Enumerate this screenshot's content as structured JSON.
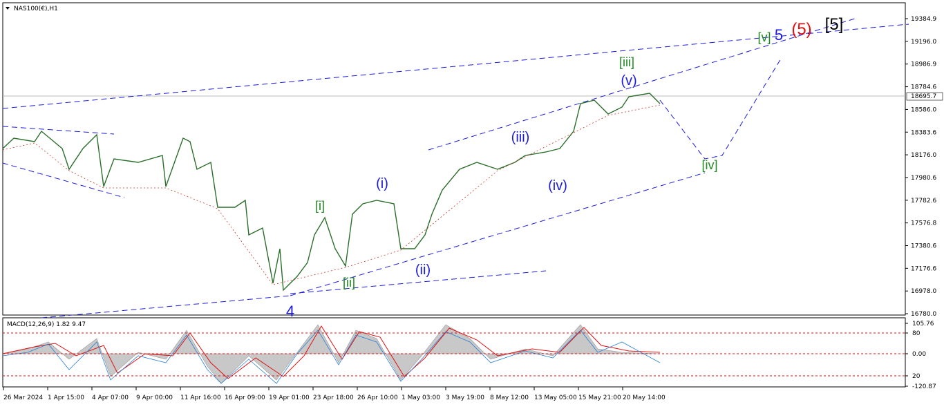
{
  "header": {
    "symbol": "NAS100(€),H1"
  },
  "price_axis": {
    "ticks": [
      "19384.9",
      "19196.0",
      "18986.9",
      "18784.6",
      "18586.0",
      "18383.6",
      "18176.0",
      "17980.6",
      "17782.6",
      "17576.8",
      "17380.6",
      "17176.6",
      "16978.0",
      "16780.0"
    ],
    "current": "18695.7"
  },
  "time_axis": [
    "26 Mar 2024",
    "1 Apr 15:00",
    "4 Apr 07:00",
    "9 Apr 00:00",
    "11 Apr 16:00",
    "16 Apr 09:00",
    "19 Apr 01:00",
    "23 Apr 18:00",
    "26 Apr 10:00",
    "1 May 03:00",
    "3 May 19:00",
    "8 May 12:00",
    "13 May 05:00",
    "15 May 21:00",
    "20 May 14:00"
  ],
  "wave_labels": [
    {
      "text": "4",
      "color": "#1a1adc"
    },
    {
      "text": "[i]",
      "color": "#1f8a1f"
    },
    {
      "text": "[ii]",
      "color": "#1f8a1f"
    },
    {
      "text": "(i)",
      "color": "#1a1adc"
    },
    {
      "text": "(ii)",
      "color": "#1a1adc"
    },
    {
      "text": "(iii)",
      "color": "#1a1adc"
    },
    {
      "text": "(iv)",
      "color": "#1a1adc"
    },
    {
      "text": "[iii]",
      "color": "#1f8a1f"
    },
    {
      "text": "(v)",
      "color": "#1a1adc"
    },
    {
      "text": "[iv]",
      "color": "#1f8a1f"
    },
    {
      "text": "[v]",
      "color": "#1f8a1f"
    },
    {
      "text": "5",
      "color": "#1a1adc"
    },
    {
      "text": "(5)",
      "color": "#e01010"
    },
    {
      "text": "[5]",
      "color": "#000000"
    }
  ],
  "macd": {
    "label": "MACD(12,26,9) 1.82 9.47",
    "ticks": [
      "105.76",
      "80",
      "0.00",
      "20",
      "-120.87"
    ]
  }
}
